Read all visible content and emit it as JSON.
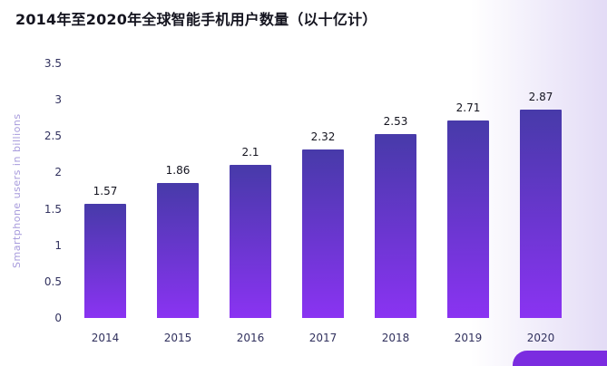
{
  "chart_data": {
    "type": "bar",
    "title": "2014年至2020年全球智能手机用户数量（以十亿计）",
    "xlabel": "",
    "ylabel": "Smartphone users in billions",
    "categories": [
      "2014",
      "2015",
      "2016",
      "2017",
      "2018",
      "2019",
      "2020"
    ],
    "values": [
      1.57,
      1.86,
      2.1,
      2.32,
      2.53,
      2.71,
      2.87
    ],
    "value_labels": [
      "1.57",
      "1.86",
      "2.1",
      "2.32",
      "2.53",
      "2.71",
      "2.87"
    ],
    "ylim": [
      0,
      3.5
    ],
    "yticks": [
      "0",
      "0.5",
      "1",
      "1.5",
      "2",
      "2.5",
      "3",
      "3.5"
    ],
    "grid": false,
    "legend": "none",
    "colors": {
      "title_text": "#14141f",
      "axis_text": "#31315e",
      "ylabel_text": "#a79bdc",
      "value_text": "#14141f",
      "bar_top": "#473aa9",
      "bar_bottom": "#8a33f2",
      "accent_shape": "#7b2ce0",
      "bg_gradient": "#ded5f4"
    }
  }
}
